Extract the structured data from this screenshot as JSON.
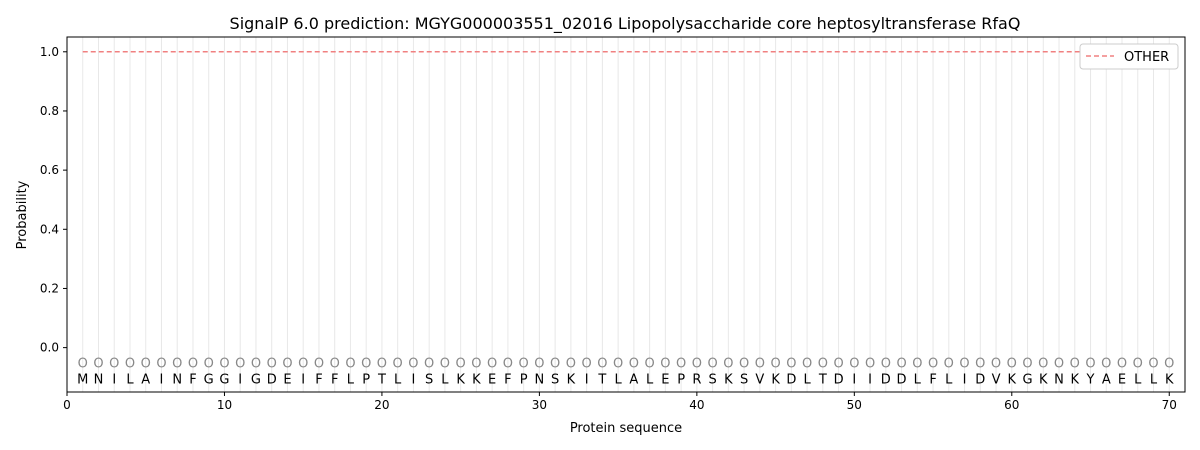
{
  "chart_data": {
    "type": "line",
    "title": "SignalP 6.0 prediction: MGYG000003551_02016 Lipopolysaccharide core heptosyltransferase RfaQ",
    "xlabel": "Protein sequence",
    "ylabel": "Probability",
    "xlim": [
      0,
      71
    ],
    "ylim": [
      -0.15,
      1.05
    ],
    "xticks": [
      0,
      10,
      20,
      30,
      40,
      50,
      60,
      70
    ],
    "yticks": [
      0.0,
      0.2,
      0.4,
      0.6,
      0.8,
      1.0
    ],
    "ytick_labels": [
      "0.0",
      "0.2",
      "0.4",
      "0.6",
      "0.8",
      "1.0"
    ],
    "legend_position": "top-right",
    "grid": "vertical lines at each residue",
    "sequence": [
      "M",
      "N",
      "I",
      "L",
      "A",
      "I",
      "N",
      "F",
      "G",
      "G",
      "I",
      "G",
      "D",
      "E",
      "I",
      "F",
      "F",
      "L",
      "P",
      "T",
      "L",
      "I",
      "S",
      "L",
      "K",
      "K",
      "E",
      "F",
      "P",
      "N",
      "S",
      "K",
      "I",
      "T",
      "L",
      "A",
      "L",
      "E",
      "P",
      "R",
      "S",
      "K",
      "S",
      "V",
      "K",
      "D",
      "L",
      "T",
      "D",
      "I",
      "I",
      "D",
      "D",
      "L",
      "F",
      "L",
      "I",
      "D",
      "V",
      "K",
      "G",
      "K",
      "N",
      "K",
      "Y",
      "A",
      "E",
      "L",
      "L",
      "K"
    ],
    "marker_label": "O",
    "series": [
      {
        "name": "OTHER",
        "color": "#f08080",
        "style": "dashed",
        "x_range": [
          1,
          70
        ],
        "value": 1.0
      }
    ]
  }
}
